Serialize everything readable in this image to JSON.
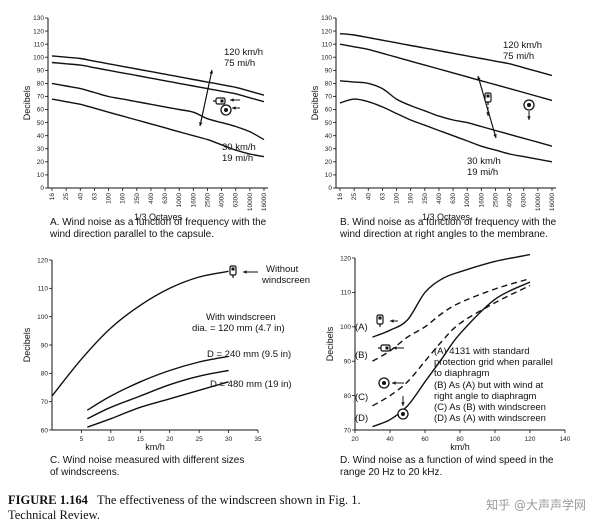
{
  "figure": {
    "label": "FIGURE 1.164",
    "text_line1": "The effectiveness of the windscreen shown in Fig. 1.",
    "text_line2": "Technical Review.",
    "watermark": "知乎 @大声声学网"
  },
  "chart_data": [
    {
      "id": "A",
      "type": "line",
      "title": "A. Wind noise as a function of frequency with the wind direction parallel to the capsule.",
      "caption_lines": [
        "A. Wind noise as a function of frequency with the",
        "wind direction parallel to the capsule."
      ],
      "xlabel": "1/3 Octaves",
      "ylabel": "Decibels",
      "ylim": [
        0,
        130
      ],
      "yticks": [
        0,
        10,
        20,
        30,
        40,
        50,
        60,
        70,
        80,
        90,
        100,
        110,
        120,
        130
      ],
      "categories": [
        "16",
        "25",
        "40",
        "63",
        "100",
        "160",
        "250",
        "400",
        "630",
        "1000",
        "1600",
        "2500",
        "4000",
        "6300",
        "10000",
        "16000"
      ],
      "series": [
        {
          "name": "120 km/h upper",
          "values": [
            101,
            100,
            99,
            97,
            95,
            93,
            91,
            89,
            87,
            85,
            83,
            81,
            79,
            77,
            74,
            71
          ]
        },
        {
          "name": "120 km/h lower",
          "values": [
            96,
            95,
            94,
            92,
            90,
            88,
            86,
            84,
            82,
            80,
            78,
            76,
            74,
            72,
            69,
            66
          ]
        },
        {
          "name": "30 km/h upper",
          "values": [
            80,
            78,
            76,
            73,
            70,
            68,
            66,
            64,
            62,
            60,
            58,
            53,
            50,
            47,
            43,
            37
          ]
        },
        {
          "name": "30 km/h lower",
          "values": [
            68,
            66,
            64,
            61,
            58,
            55,
            52,
            49,
            46,
            43,
            40,
            37,
            33,
            29,
            26,
            24
          ]
        }
      ],
      "annotations": [
        "120 km/h",
        "75 mi/h",
        "30 km/h",
        "19 mi/h"
      ]
    },
    {
      "id": "B",
      "type": "line",
      "title": "B. Wind noise as a function of frequency with the wind direction at right angles to the membrane.",
      "caption_lines": [
        "B. Wind noise as a function of frequency with the",
        "wind direction at right angles to the membrane."
      ],
      "xlabel": "1/3 Octaves",
      "ylabel": "Decibels",
      "ylim": [
        0,
        130
      ],
      "yticks": [
        0,
        10,
        20,
        30,
        40,
        50,
        60,
        70,
        80,
        90,
        100,
        110,
        120,
        130
      ],
      "categories": [
        "16",
        "25",
        "40",
        "63",
        "100",
        "160",
        "250",
        "400",
        "630",
        "1000",
        "1600",
        "2500",
        "4000",
        "6300",
        "10000",
        "16000"
      ],
      "series": [
        {
          "name": "120 km/h upper",
          "values": [
            118,
            117,
            115,
            113,
            111,
            109,
            107,
            105,
            103,
            101,
            99,
            97,
            95,
            92,
            89,
            86
          ]
        },
        {
          "name": "120 km/h lower",
          "values": [
            110,
            108,
            106,
            103,
            100,
            97,
            94,
            91,
            88,
            85,
            82,
            79,
            76,
            73,
            70,
            67
          ]
        },
        {
          "name": "30 km/h upper",
          "values": [
            82,
            81,
            80,
            76,
            68,
            63,
            59,
            55,
            52,
            50,
            47,
            44,
            41,
            38,
            35,
            32
          ]
        },
        {
          "name": "30 km/h lower",
          "values": [
            65,
            68,
            66,
            62,
            57,
            52,
            48,
            44,
            40,
            36,
            32,
            29,
            26,
            24,
            22,
            20
          ]
        }
      ],
      "annotations": [
        "120 km/h",
        "75 mi/h",
        "30 km/h",
        "19 mi/h"
      ]
    },
    {
      "id": "C",
      "type": "line",
      "title": "C. Wind noise measured with different sizes of windscreens.",
      "caption_lines": [
        "C. Wind noise measured with different sizes",
        "of windscreens."
      ],
      "xlabel": "km/h",
      "ylabel": "Decibels",
      "xlim": [
        0,
        35
      ],
      "ylim": [
        60,
        120
      ],
      "xticks": [
        5,
        10,
        15,
        20,
        25,
        30,
        35
      ],
      "yticks": [
        60,
        70,
        80,
        90,
        100,
        110,
        120
      ],
      "series": [
        {
          "name": "Without windscreen",
          "x": [
            0,
            5,
            10,
            15,
            20,
            25,
            30
          ],
          "y": [
            72,
            85,
            96,
            104,
            110,
            114,
            116
          ]
        },
        {
          "name": "dia. = 120 mm (4.7 in)",
          "x": [
            6,
            10,
            15,
            20,
            25,
            30
          ],
          "y": [
            67,
            72,
            77,
            81,
            84,
            86
          ]
        },
        {
          "name": "D = 240 mm (9.5 in)",
          "x": [
            6,
            10,
            15,
            20,
            25,
            30
          ],
          "y": [
            64,
            68,
            72,
            76,
            79,
            81
          ]
        },
        {
          "name": "D = 480 mm (19 in)",
          "x": [
            6,
            10,
            15,
            20,
            25,
            30
          ],
          "y": [
            61,
            64,
            68,
            71,
            74,
            77
          ]
        }
      ],
      "annotations": {
        "without_1": "Without",
        "without_2": "windscreen",
        "with_1": "With windscreen",
        "with_2": "dia. = 120 mm (4.7 in)",
        "d240": "D = 240 mm (9.5 in)",
        "d480": "D = 480 mm (19 in)"
      }
    },
    {
      "id": "D",
      "type": "line",
      "title": "D. Wind noise as a function of wind speed in the range 20 Hz to 20 kHz.",
      "caption_lines": [
        "D. Wind noise as a function of wind speed in the",
        "range 20 Hz to 20 kHz."
      ],
      "xlabel": "km/h",
      "ylabel": "Decibels",
      "xlim": [
        20,
        140
      ],
      "ylim": [
        70,
        120
      ],
      "xticks": [
        20,
        40,
        60,
        80,
        100,
        120,
        140
      ],
      "yticks": [
        70,
        80,
        90,
        100,
        110,
        120
      ],
      "series": [
        {
          "name": "(A)",
          "style": "solid",
          "x": [
            30,
            40,
            50,
            60,
            70,
            80,
            100,
            120
          ],
          "y": [
            97,
            99,
            102,
            110,
            114,
            116,
            119,
            121
          ]
        },
        {
          "name": "(B)",
          "style": "dashed",
          "x": [
            30,
            40,
            50,
            60,
            70,
            80,
            100,
            120
          ],
          "y": [
            90,
            93,
            97,
            100,
            104,
            107,
            111,
            114
          ]
        },
        {
          "name": "(C)",
          "style": "dashed",
          "x": [
            30,
            40,
            50,
            60,
            70,
            80,
            100,
            120
          ],
          "y": [
            77,
            80,
            84,
            90,
            96,
            101,
            107,
            112
          ]
        },
        {
          "name": "(D)",
          "style": "solid",
          "x": [
            30,
            40,
            50,
            60,
            70,
            80,
            100,
            120
          ],
          "y": [
            71,
            73,
            77,
            84,
            91,
            98,
            108,
            113
          ]
        }
      ],
      "legend": [
        "(A) 4131 with standard",
        "protection grid when parallel",
        "to diaphragm",
        "(B) As (A) but with wind at",
        "right angle to diaphragm",
        "(C) As (B) with windscreen",
        "(D) As (A) with windscreen"
      ],
      "line_labels": [
        "(A)",
        "(B)",
        "(C)",
        "(D)"
      ]
    }
  ]
}
